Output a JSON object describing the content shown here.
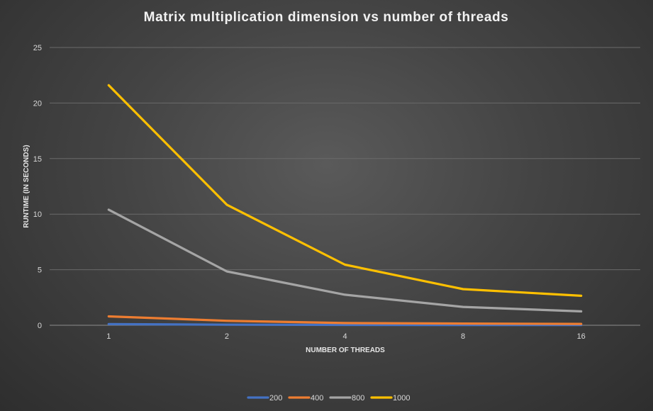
{
  "chart_data": {
    "type": "line",
    "title": "Matrix multiplication dimension vs number of threads",
    "xlabel": "NUMBER OF THREADS",
    "ylabel": "RUNTIME (IN SECONDS)",
    "categories": [
      "1",
      "2",
      "4",
      "8",
      "16"
    ],
    "ylim": [
      0,
      25
    ],
    "yticks": [
      0,
      5,
      10,
      15,
      20,
      25
    ],
    "grid": true,
    "legend_position": "bottom",
    "series": [
      {
        "name": "200",
        "color": "#4472c4",
        "values": [
          0.1,
          0.05,
          0.03,
          0.02,
          0.02
        ]
      },
      {
        "name": "400",
        "color": "#ed7d31",
        "values": [
          0.8,
          0.4,
          0.2,
          0.15,
          0.12
        ]
      },
      {
        "name": "800",
        "color": "#a5a5a5",
        "values": [
          10.4,
          4.85,
          2.75,
          1.65,
          1.25
        ]
      },
      {
        "name": "1000",
        "color": "#ffc000",
        "values": [
          21.6,
          10.85,
          5.45,
          3.25,
          2.65
        ]
      }
    ]
  }
}
